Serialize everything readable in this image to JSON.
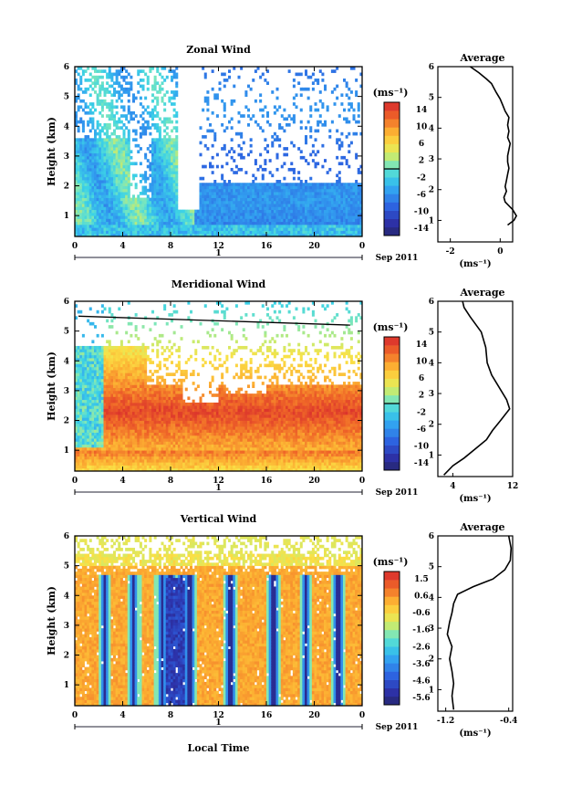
{
  "figure": {
    "xlabel": "Local Time",
    "date_label": "Sep 2011",
    "day_label": "1",
    "unit_label": "(ms⁻¹)",
    "avg_title": "Average",
    "ylabel": "Height (km)"
  },
  "chart_data": [
    {
      "type": "heatmap",
      "title": "Zonal Wind",
      "xlabel": "Local Time",
      "ylabel": "Height (km)",
      "xlim": [
        0,
        24
      ],
      "ylim": [
        0.3,
        6
      ],
      "x_ticks": [
        "0",
        "4",
        "8",
        "12",
        "16",
        "20",
        "0"
      ],
      "y_ticks": [
        "1",
        "2",
        "3",
        "4",
        "5",
        "6"
      ],
      "colorbar": {
        "ticks": [
          "14",
          "10",
          "6",
          "2",
          "-2",
          "-6",
          "-10",
          "-14"
        ],
        "range": [
          -16,
          16
        ],
        "contour_level": 0
      },
      "average_profile": {
        "title": "Average",
        "xlabel": "(ms⁻¹)",
        "xlim": [
          -2.5,
          0.5
        ],
        "x_ticks": [
          -2,
          0
        ],
        "points": [
          [
            0.3,
            0.85
          ],
          [
            0.55,
            1.0
          ],
          [
            0.65,
            1.15
          ],
          [
            0.5,
            1.35
          ],
          [
            0.2,
            1.6
          ],
          [
            0.15,
            1.75
          ],
          [
            0.25,
            1.95
          ],
          [
            0.2,
            2.1
          ],
          [
            0.25,
            2.3
          ],
          [
            0.3,
            2.5
          ],
          [
            0.35,
            2.7
          ],
          [
            0.3,
            2.9
          ],
          [
            0.3,
            3.1
          ],
          [
            0.35,
            3.3
          ],
          [
            0.4,
            3.5
          ],
          [
            0.3,
            3.7
          ],
          [
            0.35,
            3.9
          ],
          [
            0.3,
            4.1
          ],
          [
            0.35,
            4.35
          ],
          [
            0.2,
            4.55
          ],
          [
            0.1,
            4.75
          ],
          [
            0.0,
            4.95
          ],
          [
            -0.15,
            5.15
          ],
          [
            -0.25,
            5.3
          ],
          [
            -0.35,
            5.45
          ],
          [
            -0.55,
            5.6
          ],
          [
            -0.85,
            5.8
          ],
          [
            -1.2,
            6.0
          ]
        ]
      }
    },
    {
      "type": "heatmap",
      "title": "Meridional Wind",
      "xlabel": "Local Time",
      "ylabel": "Height (km)",
      "xlim": [
        0,
        24
      ],
      "ylim": [
        0.3,
        6
      ],
      "x_ticks": [
        "0",
        "4",
        "8",
        "12",
        "16",
        "20",
        "0"
      ],
      "y_ticks": [
        "1",
        "2",
        "3",
        "4",
        "5",
        "6"
      ],
      "colorbar": {
        "ticks": [
          "14",
          "10",
          "6",
          "2",
          "-2",
          "-6",
          "-10",
          "-14"
        ],
        "range": [
          -16,
          16
        ],
        "contour_level": 0
      },
      "average_profile": {
        "title": "Average",
        "xlabel": "(ms⁻¹)",
        "xlim": [
          2,
          12
        ],
        "x_ticks": [
          4,
          12
        ],
        "points": [
          [
            2.8,
            0.35
          ],
          [
            4.0,
            0.65
          ],
          [
            5.5,
            0.9
          ],
          [
            7.0,
            1.2
          ],
          [
            8.5,
            1.5
          ],
          [
            9.3,
            1.8
          ],
          [
            10.3,
            2.1
          ],
          [
            11.6,
            2.5
          ],
          [
            11.2,
            2.8
          ],
          [
            10.2,
            3.2
          ],
          [
            9.2,
            3.6
          ],
          [
            8.6,
            4.0
          ],
          [
            8.4,
            4.5
          ],
          [
            7.8,
            5.0
          ],
          [
            6.3,
            5.5
          ],
          [
            5.5,
            5.8
          ],
          [
            5.3,
            6.0
          ]
        ]
      }
    },
    {
      "type": "heatmap",
      "title": "Vertical Wind",
      "xlabel": "Local Time",
      "ylabel": "Height (km)",
      "xlim": [
        0,
        24
      ],
      "ylim": [
        0.3,
        6
      ],
      "x_ticks": [
        "0",
        "4",
        "8",
        "12",
        "16",
        "20",
        "0"
      ],
      "y_ticks": [
        "1",
        "2",
        "3",
        "4",
        "5",
        "6"
      ],
      "colorbar": {
        "ticks": [
          "1.5",
          "0.6",
          "-0.6",
          "-1.6",
          "-2.6",
          "-3.6",
          "-4.6",
          "-5.6"
        ],
        "range": [
          -6.1,
          2.0
        ]
      },
      "average_profile": {
        "title": "Average",
        "xlabel": "(ms⁻¹)",
        "xlim": [
          -1.3,
          -0.35
        ],
        "x_ticks": [
          -1.2,
          -0.4
        ],
        "points": [
          [
            -1.1,
            0.35
          ],
          [
            -1.12,
            0.8
          ],
          [
            -1.1,
            1.2
          ],
          [
            -1.12,
            1.6
          ],
          [
            -1.15,
            2.0
          ],
          [
            -1.12,
            2.4
          ],
          [
            -1.18,
            2.8
          ],
          [
            -1.15,
            3.2
          ],
          [
            -1.12,
            3.5
          ],
          [
            -1.1,
            3.8
          ],
          [
            -1.05,
            4.1
          ],
          [
            -0.85,
            4.35
          ],
          [
            -0.6,
            4.6
          ],
          [
            -0.45,
            4.9
          ],
          [
            -0.38,
            5.2
          ],
          [
            -0.37,
            5.6
          ],
          [
            -0.4,
            6.0
          ]
        ]
      }
    }
  ]
}
